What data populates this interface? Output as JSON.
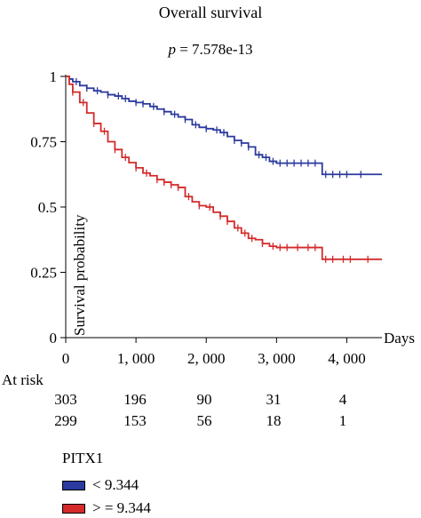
{
  "title": "Overall survival",
  "p_label": "p",
  "p_value": " = 7.578e-13",
  "chart_data": {
    "type": "line",
    "title": "Overall survival",
    "xlabel": "Days",
    "ylabel": "Survival probability",
    "xlim": [
      0,
      4500
    ],
    "ylim": [
      0,
      1
    ],
    "x_ticks": [
      0,
      1000,
      2000,
      3000,
      4000
    ],
    "x_tick_labels": [
      "0",
      "1, 000",
      "2, 000",
      "3, 000",
      "4, 000"
    ],
    "y_ticks": [
      0,
      0.25,
      0.5,
      0.75,
      1
    ],
    "y_tick_labels": [
      "0",
      "0.25",
      "0.5",
      "0.75",
      "1"
    ],
    "grid": false,
    "legend_placement": "bottom-left",
    "series": [
      {
        "name": "< 9.344",
        "color": "#2b3a9e",
        "points": [
          [
            0,
            1
          ],
          [
            50,
            0.99
          ],
          [
            100,
            0.98
          ],
          [
            200,
            0.965
          ],
          [
            300,
            0.955
          ],
          [
            400,
            0.945
          ],
          [
            500,
            0.94
          ],
          [
            600,
            0.93
          ],
          [
            700,
            0.925
          ],
          [
            800,
            0.915
          ],
          [
            900,
            0.905
          ],
          [
            1000,
            0.9
          ],
          [
            1100,
            0.895
          ],
          [
            1200,
            0.885
          ],
          [
            1300,
            0.875
          ],
          [
            1400,
            0.865
          ],
          [
            1500,
            0.855
          ],
          [
            1600,
            0.845
          ],
          [
            1700,
            0.835
          ],
          [
            1800,
            0.815
          ],
          [
            1900,
            0.805
          ],
          [
            2000,
            0.8
          ],
          [
            2100,
            0.795
          ],
          [
            2200,
            0.785
          ],
          [
            2300,
            0.77
          ],
          [
            2400,
            0.755
          ],
          [
            2500,
            0.745
          ],
          [
            2600,
            0.73
          ],
          [
            2700,
            0.7
          ],
          [
            2800,
            0.69
          ],
          [
            2900,
            0.675
          ],
          [
            3000,
            0.668
          ],
          [
            3200,
            0.668
          ],
          [
            3400,
            0.668
          ],
          [
            3500,
            0.668
          ],
          [
            3600,
            0.668
          ],
          [
            3650,
            0.625
          ],
          [
            3800,
            0.625
          ],
          [
            4000,
            0.625
          ],
          [
            4200,
            0.625
          ],
          [
            4500,
            0.625
          ]
        ],
        "censor_x": [
          150,
          300,
          450,
          600,
          750,
          850,
          1000,
          1100,
          1250,
          1400,
          1550,
          1700,
          1850,
          2000,
          2150,
          2250,
          2400,
          2500,
          2600,
          2750,
          2850,
          2950,
          3050,
          3150,
          3250,
          3350,
          3450,
          3550,
          3700,
          3800,
          3900,
          4000,
          4200
        ]
      },
      {
        "name": "> = 9.344",
        "color": "#d42a2a",
        "points": [
          [
            0,
            1
          ],
          [
            50,
            0.97
          ],
          [
            100,
            0.94
          ],
          [
            200,
            0.9
          ],
          [
            300,
            0.86
          ],
          [
            400,
            0.82
          ],
          [
            500,
            0.79
          ],
          [
            600,
            0.75
          ],
          [
            700,
            0.72
          ],
          [
            800,
            0.69
          ],
          [
            900,
            0.67
          ],
          [
            1000,
            0.65
          ],
          [
            1100,
            0.63
          ],
          [
            1200,
            0.62
          ],
          [
            1300,
            0.605
          ],
          [
            1400,
            0.595
          ],
          [
            1500,
            0.585
          ],
          [
            1600,
            0.575
          ],
          [
            1700,
            0.54
          ],
          [
            1800,
            0.52
          ],
          [
            1900,
            0.505
          ],
          [
            2000,
            0.5
          ],
          [
            2100,
            0.48
          ],
          [
            2200,
            0.465
          ],
          [
            2300,
            0.445
          ],
          [
            2400,
            0.42
          ],
          [
            2500,
            0.4
          ],
          [
            2600,
            0.38
          ],
          [
            2700,
            0.375
          ],
          [
            2800,
            0.36
          ],
          [
            2900,
            0.35
          ],
          [
            3000,
            0.345
          ],
          [
            3200,
            0.345
          ],
          [
            3400,
            0.345
          ],
          [
            3600,
            0.345
          ],
          [
            3650,
            0.3
          ],
          [
            3800,
            0.3
          ],
          [
            4000,
            0.3
          ],
          [
            4200,
            0.3
          ],
          [
            4500,
            0.3
          ]
        ],
        "censor_x": [
          100,
          250,
          400,
          550,
          700,
          850,
          1000,
          1150,
          1300,
          1400,
          1500,
          1600,
          1750,
          1900,
          2050,
          2200,
          2300,
          2450,
          2550,
          2650,
          2800,
          2950,
          3050,
          3150,
          3300,
          3450,
          3550,
          3700,
          3800,
          3950,
          4050,
          4300
        ]
      }
    ]
  },
  "at_risk": {
    "label": "At risk",
    "rows": [
      [
        "303",
        "196",
        "90",
        "31",
        "4"
      ],
      [
        "299",
        "153",
        "56",
        "18",
        "1"
      ]
    ]
  },
  "legend": {
    "title": "PITX1",
    "items": [
      {
        "label": "< 9.344",
        "color": "#2b3a9e"
      },
      {
        "label": "> = 9.344",
        "color": "#d42a2a"
      }
    ]
  }
}
